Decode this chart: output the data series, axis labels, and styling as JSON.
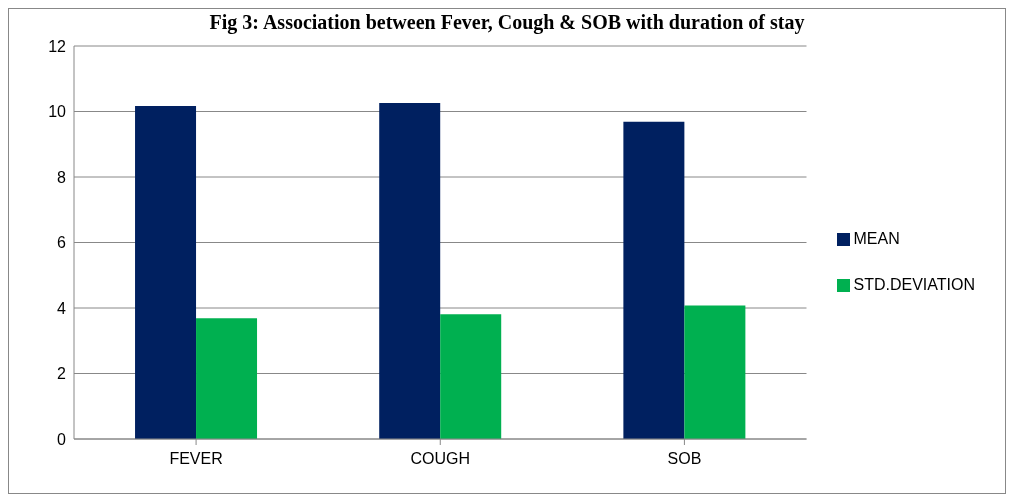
{
  "chart_data": {
    "type": "bar",
    "title": "Fig 3: Association between Fever, Cough & SOB with duration of stay",
    "categories": [
      "FEVER",
      "COUGH",
      "SOB"
    ],
    "series": [
      {
        "name": "MEAN",
        "color": "#002060",
        "values": [
          10.17,
          10.26,
          9.69
        ]
      },
      {
        "name": "STD.DEVIATION",
        "color": "#00b050",
        "values": [
          3.69,
          3.81,
          4.08
        ]
      }
    ],
    "ylim": [
      0,
      12
    ],
    "yticks": [
      0,
      2,
      4,
      6,
      8,
      10,
      12
    ],
    "grid": "y",
    "legend": "right"
  }
}
